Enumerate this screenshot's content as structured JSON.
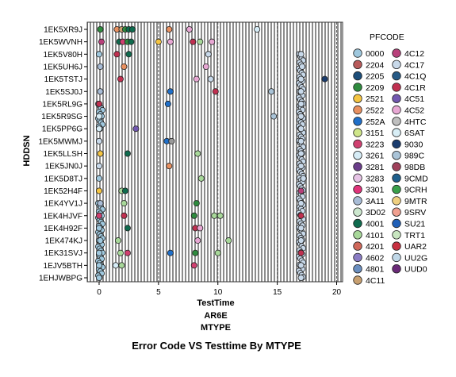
{
  "chart_data": {
    "type": "scatter",
    "title": "Error Code VS Testtime By MTYPE",
    "xlabel": "TestTime",
    "xsubtitles": [
      "AR6E",
      "MTYPE"
    ],
    "ylabel": "HDDSN",
    "xlim": [
      -1,
      20.5
    ],
    "xticks": [
      0,
      5,
      10,
      15,
      20
    ],
    "grid": "vertical stripes",
    "legend_position": "right",
    "legend_title": "PFCODE",
    "categories": [
      "1EK5XR9J",
      "1EK5WVNH",
      "1EK5V80H",
      "1EK5UH6J",
      "1EK5TSTJ",
      "1EK5SJ0J",
      "1EK5RL9G",
      "1EK5R9SG",
      "1EK5PP6G",
      "1EK5MWMJ",
      "1EK5LLSH",
      "1EK5JN0J",
      "1EK5D8TJ",
      "1EK52H4F",
      "1EK4YV1J",
      "1EK4HJVF",
      "1EK4H92F",
      "1EK474KJ",
      "1EK31SVJ",
      "1EJV5BTH",
      "1EHJWBPG"
    ],
    "legend": [
      {
        "code": "0000",
        "color": "#9fc8de"
      },
      {
        "code": "2204",
        "color": "#b85a5a"
      },
      {
        "code": "2205",
        "color": "#1c4e7a"
      },
      {
        "code": "2209",
        "color": "#2e8b3e"
      },
      {
        "code": "2521",
        "color": "#f5c542"
      },
      {
        "code": "2522",
        "color": "#e89060"
      },
      {
        "code": "252A",
        "color": "#1f6fc9"
      },
      {
        "code": "3151",
        "color": "#cfe68a"
      },
      {
        "code": "3223",
        "color": "#d04070"
      },
      {
        "code": "3261",
        "color": "#d6ecf6"
      },
      {
        "code": "3281",
        "color": "#6a3d8a"
      },
      {
        "code": "3283",
        "color": "#e7c4e6"
      },
      {
        "code": "3301",
        "color": "#e0337a"
      },
      {
        "code": "3A11",
        "color": "#a8bcd6"
      },
      {
        "code": "3D02",
        "color": "#cde8cf"
      },
      {
        "code": "4001",
        "color": "#0f6b4e"
      },
      {
        "code": "4101",
        "color": "#a8d89a"
      },
      {
        "code": "4201",
        "color": "#d0685a"
      },
      {
        "code": "4602",
        "color": "#8a7cc4"
      },
      {
        "code": "4801",
        "color": "#6b8fc0"
      },
      {
        "code": "4C11",
        "color": "#c8a070"
      },
      {
        "code": "4C12",
        "color": "#b8407a"
      },
      {
        "code": "4C17",
        "color": "#c8d9ea"
      },
      {
        "code": "4C1Q",
        "color": "#265a86"
      },
      {
        "code": "4C1R",
        "color": "#c03050"
      },
      {
        "code": "4C51",
        "color": "#7258b0"
      },
      {
        "code": "4C52",
        "color": "#e8a8d4"
      },
      {
        "code": "4HTC",
        "color": "#bfbfbf"
      },
      {
        "code": "6SAT",
        "color": "#d8eef6"
      },
      {
        "code": "9030",
        "color": "#1a3c6e"
      },
      {
        "code": "989C",
        "color": "#aac4d8"
      },
      {
        "code": "98DB",
        "color": "#a0405a"
      },
      {
        "code": "9CMD",
        "color": "#1e5f8c"
      },
      {
        "code": "9CRH",
        "color": "#3aa04a"
      },
      {
        "code": "9MTR",
        "color": "#f0d080"
      },
      {
        "code": "9SRV",
        "color": "#f0a090"
      },
      {
        "code": "SU21",
        "color": "#2060b8"
      },
      {
        "code": "TRT1",
        "color": "#c8e6c0"
      },
      {
        "code": "UAR2",
        "color": "#c83040"
      },
      {
        "code": "UU2G",
        "color": "#c0d8e8"
      },
      {
        "code": "UUD0",
        "color": "#6a2a78"
      }
    ],
    "points": [
      {
        "x": 0.1,
        "y": "1EK5XR9J",
        "code": "2209"
      },
      {
        "x": 1.5,
        "y": "1EK5XR9J",
        "code": "2522"
      },
      {
        "x": 1.9,
        "y": "1EK5XR9J",
        "code": "4C11"
      },
      {
        "x": 2.2,
        "y": "1EK5XR9J",
        "code": "2209"
      },
      {
        "x": 2.5,
        "y": "1EK5XR9J",
        "code": "4001"
      },
      {
        "x": 2.8,
        "y": "1EK5XR9J",
        "code": "4001"
      },
      {
        "x": 5.9,
        "y": "1EK5XR9J",
        "code": "2522"
      },
      {
        "x": 7.6,
        "y": "1EK5XR9J",
        "code": "4C52"
      },
      {
        "x": 13.3,
        "y": "1EK5XR9J",
        "code": "3261"
      },
      {
        "x": 0.2,
        "y": "1EK5WVNH",
        "code": "4C12"
      },
      {
        "x": 1.7,
        "y": "1EK5WVNH",
        "code": "4001"
      },
      {
        "x": 2.0,
        "y": "1EK5WVNH",
        "code": "3223"
      },
      {
        "x": 2.4,
        "y": "1EK5WVNH",
        "code": "2209"
      },
      {
        "x": 2.7,
        "y": "1EK5WVNH",
        "code": "4001"
      },
      {
        "x": 5.0,
        "y": "1EK5WVNH",
        "code": "2521"
      },
      {
        "x": 6.0,
        "y": "1EK5WVNH",
        "code": "4C52"
      },
      {
        "x": 7.9,
        "y": "1EK5WVNH",
        "code": "4C1R"
      },
      {
        "x": 8.5,
        "y": "1EK5WVNH",
        "code": "4101"
      },
      {
        "x": 9.5,
        "y": "1EK5WVNH",
        "code": "4C52"
      },
      {
        "x": 0.0,
        "y": "1EK5V80H",
        "code": "0000"
      },
      {
        "x": 1.5,
        "y": "1EK5V80H",
        "code": "4C1R"
      },
      {
        "x": 2.5,
        "y": "1EK5V80H",
        "code": "4001"
      },
      {
        "x": 9.2,
        "y": "1EK5V80H",
        "code": "4C17"
      },
      {
        "x": 17.0,
        "y": "1EK5V80H",
        "code": "4C17"
      },
      {
        "x": 0.1,
        "y": "1EK5UH6J",
        "code": "3A11"
      },
      {
        "x": 2.1,
        "y": "1EK5UH6J",
        "code": "2522"
      },
      {
        "x": 9.0,
        "y": "1EK5UH6J",
        "code": "4C52"
      },
      {
        "x": 17.1,
        "y": "1EK5UH6J",
        "code": "4C17"
      },
      {
        "x": 1.8,
        "y": "1EK5TSTJ",
        "code": "4C1R"
      },
      {
        "x": 8.2,
        "y": "1EK5TSTJ",
        "code": "4C52"
      },
      {
        "x": 9.4,
        "y": "1EK5TSTJ",
        "code": "4C17"
      },
      {
        "x": 17.0,
        "y": "1EK5TSTJ",
        "code": "4C17"
      },
      {
        "x": 19.0,
        "y": "1EK5TSTJ",
        "code": "9030"
      },
      {
        "x": 0.1,
        "y": "1EK5SJ0J",
        "code": "3A11"
      },
      {
        "x": 6.0,
        "y": "1EK5SJ0J",
        "code": "252A"
      },
      {
        "x": 9.8,
        "y": "1EK5SJ0J",
        "code": "4C1R"
      },
      {
        "x": 14.5,
        "y": "1EK5SJ0J",
        "code": "989C"
      },
      {
        "x": 17.0,
        "y": "1EK5SJ0J",
        "code": "4C17"
      },
      {
        "x": 0.0,
        "y": "1EK5RL9G",
        "code": "4C1R"
      },
      {
        "x": 5.8,
        "y": "1EK5RL9G",
        "code": "252A"
      },
      {
        "x": 17.0,
        "y": "1EK5RL9G",
        "code": "4C17"
      },
      {
        "x": 0.0,
        "y": "1EK5R9SG",
        "code": "3261"
      },
      {
        "x": 14.7,
        "y": "1EK5R9SG",
        "code": "989C"
      },
      {
        "x": 17.0,
        "y": "1EK5R9SG",
        "code": "4C17"
      },
      {
        "x": 0.0,
        "y": "1EK5PP6G",
        "code": "3261"
      },
      {
        "x": 3.1,
        "y": "1EK5PP6G",
        "code": "4C51"
      },
      {
        "x": 17.0,
        "y": "1EK5PP6G",
        "code": "4C17"
      },
      {
        "x": 0.0,
        "y": "1EK5MWMJ",
        "code": "4C17"
      },
      {
        "x": 5.7,
        "y": "1EK5MWMJ",
        "code": "252A"
      },
      {
        "x": 6.1,
        "y": "1EK5MWMJ",
        "code": "1c4e7a"
      },
      {
        "x": 17.0,
        "y": "1EK5MWMJ",
        "code": "4C17"
      },
      {
        "x": 0.1,
        "y": "1EK5LLSH",
        "code": "2521"
      },
      {
        "x": 2.4,
        "y": "1EK5LLSH",
        "code": "4001"
      },
      {
        "x": 8.3,
        "y": "1EK5LLSH",
        "code": "4101"
      },
      {
        "x": 17.0,
        "y": "1EK5LLSH",
        "code": "4C17"
      },
      {
        "x": 0.0,
        "y": "1EK5JN0J",
        "code": "4C17"
      },
      {
        "x": 5.9,
        "y": "1EK5JN0J",
        "code": "2522"
      },
      {
        "x": 17.0,
        "y": "1EK5JN0J",
        "code": "4C17"
      },
      {
        "x": 0.0,
        "y": "1EK5D8TJ",
        "code": "0000"
      },
      {
        "x": 8.6,
        "y": "1EK5D8TJ",
        "code": "4101"
      },
      {
        "x": 17.2,
        "y": "1EK5D8TJ",
        "code": "4C17"
      },
      {
        "x": 0.0,
        "y": "1EK52H4F",
        "code": "2521"
      },
      {
        "x": 1.9,
        "y": "1EK52H4F",
        "code": "4101"
      },
      {
        "x": 2.2,
        "y": "1EK52H4F",
        "code": "4001"
      },
      {
        "x": 17.0,
        "y": "1EK52H4F",
        "code": "4C12"
      },
      {
        "x": 0.1,
        "y": "1EK4YV1J",
        "code": "3A11"
      },
      {
        "x": 2.1,
        "y": "1EK4YV1J",
        "code": "4101"
      },
      {
        "x": 8.2,
        "y": "1EK4YV1J",
        "code": "2209"
      },
      {
        "x": 17.0,
        "y": "1EK4YV1J",
        "code": "4C17"
      },
      {
        "x": 0.0,
        "y": "1EK4HJVF",
        "code": "3223"
      },
      {
        "x": 2.1,
        "y": "1EK4HJVF",
        "code": "4C1R"
      },
      {
        "x": 8.0,
        "y": "1EK4HJVF",
        "code": "2209"
      },
      {
        "x": 9.7,
        "y": "1EK4HJVF",
        "code": "4101"
      },
      {
        "x": 10.2,
        "y": "1EK4HJVF",
        "code": "4101"
      },
      {
        "x": 17.0,
        "y": "1EK4HJVF",
        "code": "4C1R"
      },
      {
        "x": 0.0,
        "y": "1EK4H92F",
        "code": "0000"
      },
      {
        "x": 2.4,
        "y": "1EK4H92F",
        "code": "4001"
      },
      {
        "x": 8.1,
        "y": "1EK4H92F",
        "code": "4C1R"
      },
      {
        "x": 8.5,
        "y": "1EK4H92F",
        "code": "4C52"
      },
      {
        "x": 17.0,
        "y": "1EK4H92F",
        "code": "4C17"
      },
      {
        "x": 0.1,
        "y": "1EK474KJ",
        "code": "0000"
      },
      {
        "x": 1.6,
        "y": "1EK474KJ",
        "code": "4101"
      },
      {
        "x": 8.3,
        "y": "1EK474KJ",
        "code": "4C52"
      },
      {
        "x": 10.9,
        "y": "1EK474KJ",
        "code": "4101"
      },
      {
        "x": 17.0,
        "y": "1EK474KJ",
        "code": "4C17"
      },
      {
        "x": 0.0,
        "y": "1EK31SVJ",
        "code": "0000"
      },
      {
        "x": 1.8,
        "y": "1EK31SVJ",
        "code": "4101"
      },
      {
        "x": 2.4,
        "y": "1EK31SVJ",
        "code": "3223"
      },
      {
        "x": 6.0,
        "y": "1EK31SVJ",
        "code": "252A"
      },
      {
        "x": 8.1,
        "y": "1EK31SVJ",
        "code": "2209"
      },
      {
        "x": 10.0,
        "y": "1EK31SVJ",
        "code": "4101"
      },
      {
        "x": 17.0,
        "y": "1EK31SVJ",
        "code": "4C1R"
      },
      {
        "x": 0.0,
        "y": "1EJV5BTH",
        "code": "0000"
      },
      {
        "x": 1.4,
        "y": "1EJV5BTH",
        "code": "3261"
      },
      {
        "x": 1.9,
        "y": "1EJV5BTH",
        "code": "4101"
      },
      {
        "x": 8.0,
        "y": "1EJV5BTH",
        "code": "3223"
      },
      {
        "x": 17.0,
        "y": "1EJV5BTH",
        "code": "4C17"
      },
      {
        "x": 0.0,
        "y": "1EHJWBPG",
        "code": "0000"
      },
      {
        "x": 17.0,
        "y": "1EHJWBPG",
        "code": "4C17"
      }
    ],
    "dense_clusters": [
      {
        "x": 0.1,
        "code": "0000",
        "y_from": "1EK5RL9G",
        "y_to": "1EK5PP6G"
      },
      {
        "x": 0.1,
        "code": "0000",
        "y_from": "1EK4YV1J",
        "y_to": "1EHJWBPG"
      },
      {
        "x": 17.0,
        "code": "4C17",
        "y_from": "1EK5V80H",
        "y_to": "1EHJWBPG"
      }
    ]
  }
}
